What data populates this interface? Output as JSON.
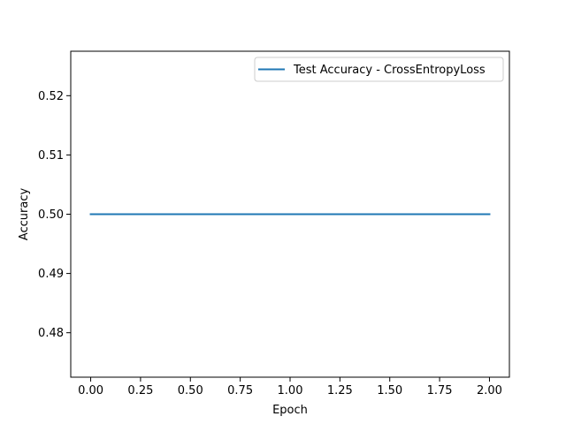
{
  "chart_data": {
    "type": "line",
    "title": "",
    "xlabel": "Epoch",
    "ylabel": "Accuracy",
    "xlim": [
      -0.1,
      2.1
    ],
    "ylim": [
      0.4725,
      0.5275
    ],
    "xticks": [
      0.0,
      0.25,
      0.5,
      0.75,
      1.0,
      1.25,
      1.5,
      1.75,
      2.0
    ],
    "xtick_labels": [
      "0.00",
      "0.25",
      "0.50",
      "0.75",
      "1.00",
      "1.25",
      "1.50",
      "1.75",
      "2.00"
    ],
    "yticks": [
      0.48,
      0.49,
      0.5,
      0.51,
      0.52
    ],
    "ytick_labels": [
      "0.48",
      "0.49",
      "0.50",
      "0.51",
      "0.52"
    ],
    "grid": false,
    "legend_position": "top-right",
    "series": [
      {
        "name": "Test Accuracy - CrossEntropyLoss",
        "color": "#1f77b4",
        "x": [
          0,
          1,
          2
        ],
        "y": [
          0.5,
          0.5,
          0.5
        ]
      }
    ]
  }
}
